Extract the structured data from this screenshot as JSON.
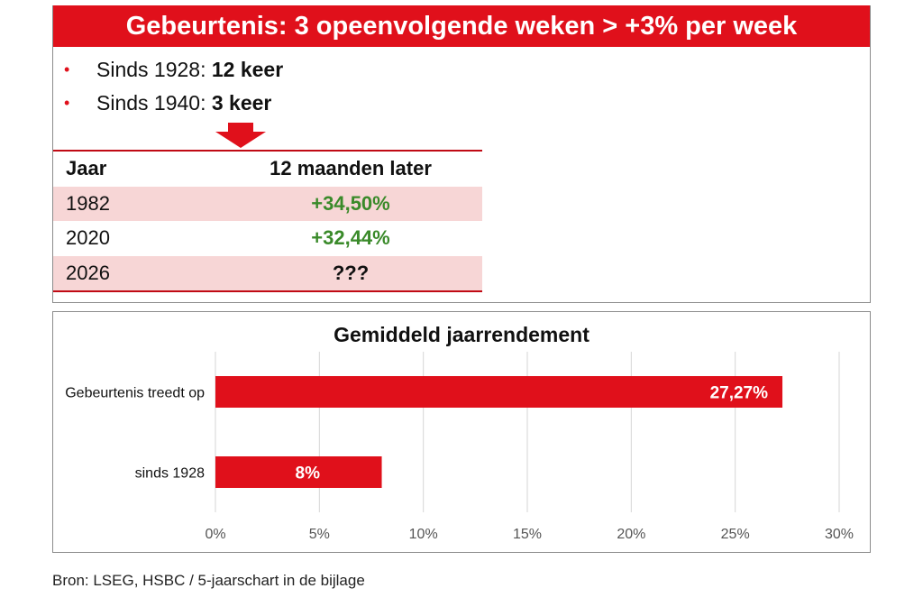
{
  "banner": {
    "title": "Gebeurtenis: 3 opeenvolgende weken > +3% per week"
  },
  "bullets": [
    {
      "label": "Sinds 1928: ",
      "value": "12 keer"
    },
    {
      "label": "Sinds 1940: ",
      "value": "3 keer"
    }
  ],
  "table": {
    "headers": {
      "year": "Jaar",
      "value": "12 maanden later"
    },
    "rows": [
      {
        "year": "1982",
        "value": "+34,50%"
      },
      {
        "year": "2020",
        "value": "+32,44%"
      },
      {
        "year": "2026",
        "value": "???"
      }
    ]
  },
  "chart_data": {
    "type": "bar",
    "orientation": "horizontal",
    "title": "Gemiddeld jaarrendement",
    "categories": [
      "Gebeurtenis treedt op",
      "sinds 1928"
    ],
    "values": [
      27.27,
      8
    ],
    "value_labels": [
      "27,27%",
      "8%"
    ],
    "xlim": [
      0,
      30
    ],
    "xticks": [
      0,
      5,
      10,
      15,
      20,
      25,
      30
    ],
    "xtick_labels": [
      "0%",
      "5%",
      "10%",
      "15%",
      "20%",
      "25%",
      "30%"
    ],
    "grid": true,
    "bar_color": "#e0101b"
  },
  "colors": {
    "accent": "#e0101b",
    "positive": "#3a8a2a",
    "row_shade": "#f7d6d6"
  },
  "source": "Bron: LSEG, HSBC / 5-jaarschart in de bijlage"
}
